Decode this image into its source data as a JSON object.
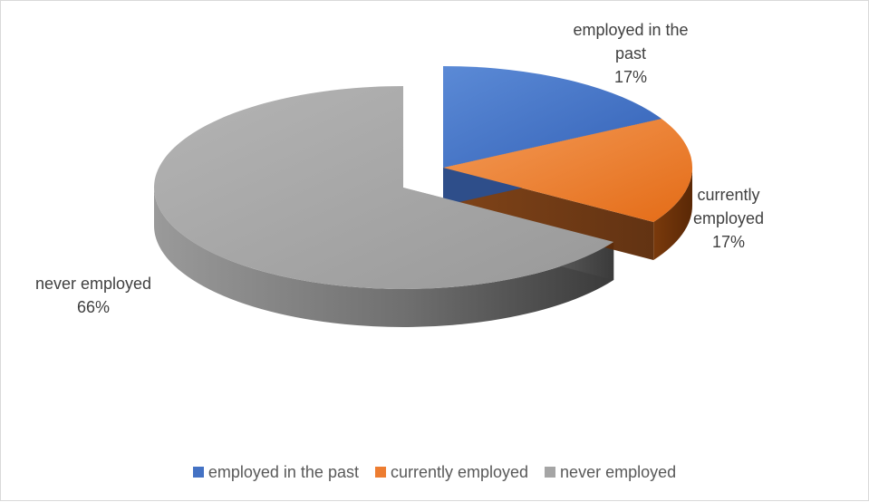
{
  "chart_data": {
    "type": "pie",
    "title": "",
    "categories": [
      "employed in the past",
      "currently employed",
      "never employed"
    ],
    "values": [
      17,
      17,
      66
    ],
    "value_labels": [
      "17%",
      "17%",
      "66%"
    ],
    "data_labels": [
      [
        "employed in the",
        "past",
        "17%"
      ],
      [
        "currently",
        "employed",
        "17%"
      ],
      [
        "never employed",
        "66%"
      ]
    ],
    "colors": [
      "#4472c4",
      "#ed7d31",
      "#a5a5a5"
    ],
    "legend_position": "bottom",
    "style": "3d-exploded"
  },
  "legend": {
    "items": [
      {
        "label": "employed in the past",
        "color": "#4472c4"
      },
      {
        "label": "currently employed",
        "color": "#ed7d31"
      },
      {
        "label": "never employed",
        "color": "#a5a5a5"
      }
    ]
  }
}
